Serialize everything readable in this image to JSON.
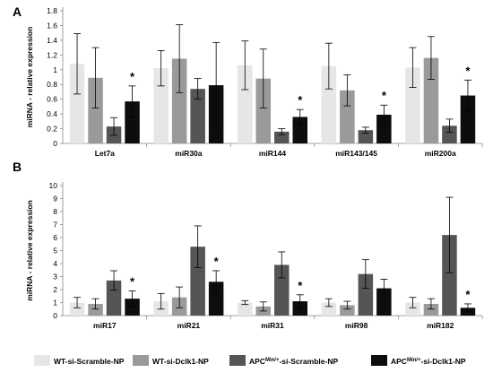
{
  "legend": {
    "items": [
      {
        "label": "WT-si-Scramble-NP",
        "color": "#e6e6e6"
      },
      {
        "label": "WT-si-Dclk1-NP",
        "color": "#9a9a9a"
      },
      {
        "label": "APC",
        "sup": "Min/+",
        "suffix": "-si-Scramble-NP",
        "color": "#555555"
      },
      {
        "label": "APC",
        "sup": "Min/+",
        "suffix": "-si-Dclk1-NP",
        "color": "#0d0d0d"
      }
    ]
  },
  "chart_data": [
    {
      "panel": "A",
      "type": "bar",
      "ylabel": "miRNA - relative expression",
      "ylim": [
        0,
        1.8
      ],
      "yticks": [
        "0",
        "0.2",
        "0.4",
        "0.6",
        "0.8",
        "1",
        "1.2",
        "1.4",
        "1.6",
        "1.8"
      ],
      "categories": [
        "Let7a",
        "miR30a",
        "miR144",
        "miR143/145",
        "miR200a"
      ],
      "series": [
        {
          "values": [
            1.08,
            1.02,
            1.06,
            1.05,
            1.03
          ],
          "errors": [
            0.41,
            0.24,
            0.33,
            0.31,
            0.27
          ]
        },
        {
          "values": [
            0.89,
            1.15,
            0.88,
            0.72,
            1.16
          ],
          "errors": [
            0.41,
            0.46,
            0.4,
            0.21,
            0.29
          ]
        },
        {
          "values": [
            0.23,
            0.74,
            0.16,
            0.18,
            0.24
          ],
          "errors": [
            0.12,
            0.14,
            0.04,
            0.04,
            0.09
          ]
        },
        {
          "values": [
            0.57,
            0.79,
            0.36,
            0.39,
            0.65
          ],
          "errors": [
            0.21,
            0.58,
            0.1,
            0.13,
            0.21
          ]
        }
      ],
      "markers": [
        {
          "category": "Let7a",
          "series": 3,
          "text": "*"
        },
        {
          "category": "miR144",
          "series": 3,
          "text": "*"
        },
        {
          "category": "miR143/145",
          "series": 3,
          "text": "*"
        },
        {
          "category": "miR200a",
          "series": 3,
          "text": "*"
        }
      ]
    },
    {
      "panel": "B",
      "type": "bar",
      "ylabel": "miRNA - relative expression",
      "ylim": [
        0,
        10
      ],
      "yticks": [
        "0",
        "1",
        "2",
        "3",
        "4",
        "5",
        "6",
        "7",
        "8",
        "9",
        "10"
      ],
      "categories": [
        "miR17",
        "miR21",
        "miR31",
        "miR98",
        "miR182"
      ],
      "series": [
        {
          "values": [
            1.0,
            1.1,
            1.0,
            1.0,
            1.0
          ],
          "errors": [
            0.4,
            0.6,
            0.15,
            0.3,
            0.4
          ]
        },
        {
          "values": [
            0.9,
            1.4,
            0.7,
            0.8,
            0.9
          ],
          "errors": [
            0.4,
            0.8,
            0.35,
            0.3,
            0.4
          ]
        },
        {
          "values": [
            2.7,
            5.3,
            3.9,
            3.2,
            6.2
          ],
          "errors": [
            0.75,
            1.6,
            1.0,
            1.1,
            2.9
          ]
        },
        {
          "values": [
            1.3,
            2.6,
            1.1,
            2.1,
            0.6
          ],
          "errors": [
            0.6,
            0.85,
            0.5,
            0.7,
            0.3
          ]
        }
      ],
      "markers": [
        {
          "category": "miR17",
          "series": 3,
          "text": "*"
        },
        {
          "category": "miR21",
          "series": 3,
          "text": "*"
        },
        {
          "category": "miR31",
          "series": 3,
          "text": "*"
        },
        {
          "category": "miR182",
          "series": 3,
          "text": "*"
        }
      ]
    }
  ]
}
